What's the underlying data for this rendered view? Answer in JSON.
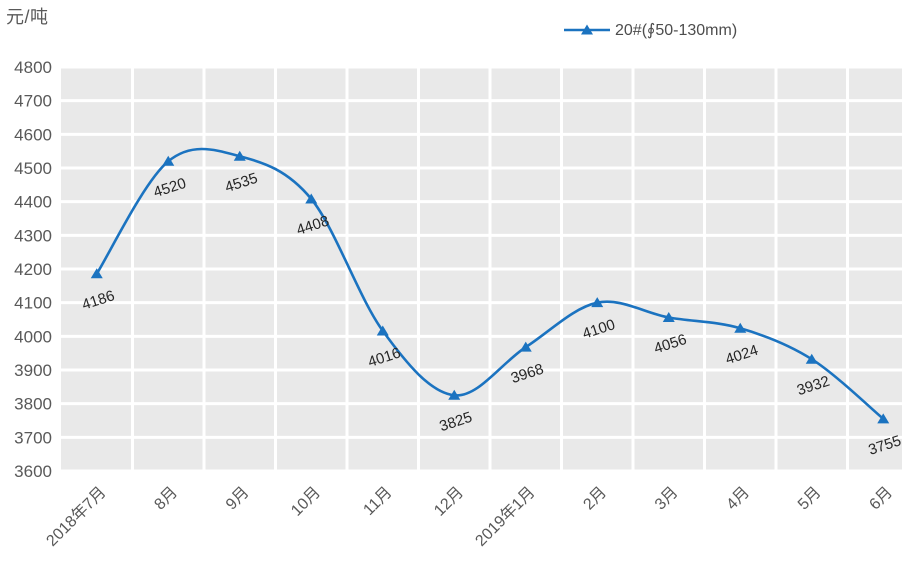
{
  "unit_label": "元/吨",
  "legend": {
    "label": "20#(∮50-130mm)",
    "line_color": "#1b73c0"
  },
  "chart_data": {
    "type": "line",
    "title": "",
    "ylabel": "元/吨",
    "xlabel": "",
    "categories": [
      "2018年7月",
      "8月",
      "9月",
      "10月",
      "11月",
      "12月",
      "2019年1月",
      "2月",
      "3月",
      "4月",
      "5月",
      "6月"
    ],
    "series": [
      {
        "name": "20#(∮50-130mm)",
        "values": [
          4186,
          4520,
          4535,
          4408,
          4016,
          3825,
          3968,
          4100,
          4056,
          4024,
          3932,
          3755
        ]
      }
    ],
    "data_labels_shown": true,
    "ylim": [
      3600,
      4800
    ],
    "ytick_step": 100,
    "yticks": [
      4800,
      4700,
      4600,
      4500,
      4400,
      4300,
      4200,
      4100,
      4000,
      3900,
      3800,
      3700,
      3600
    ],
    "grid": true,
    "smooth": true,
    "marker": "triangle-up",
    "legend_position": "top-center",
    "colors": {
      "series": "#1b73c0",
      "plot_background": "#e9e9e9",
      "gridline": "#ffffff",
      "axis_text": "#595959",
      "data_label": "#262626"
    }
  }
}
